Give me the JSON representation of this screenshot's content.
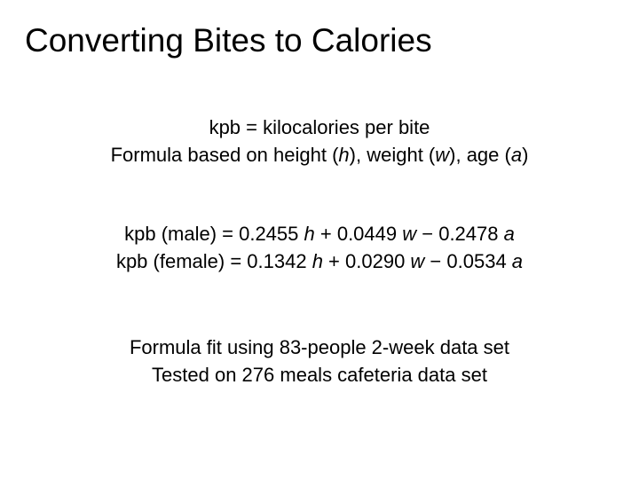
{
  "title": "Converting Bites to Calories",
  "definition": {
    "line1": "kpb = kilocalories per bite",
    "line2": {
      "prefix": "Formula based on height (",
      "h": "h",
      "mid1": "), weight (",
      "w": "w",
      "mid2": "), age (",
      "a": "a",
      "suffix": ")"
    }
  },
  "formulas": {
    "male": {
      "lhs": "kpb (male) = 0.2455 ",
      "h": "h",
      "part2": " + 0.0449 ",
      "w": "w",
      "part3": " − 0.2478 ",
      "a": "a"
    },
    "female": {
      "lhs": "kpb (female) = 0.1342 ",
      "h": "h",
      "part2": " + 0.0290 ",
      "w": "w",
      "part3": " − 0.0534 ",
      "a": "a"
    }
  },
  "notes": {
    "line1": "Formula fit using 83-people 2-week data set",
    "line2": "Tested on 276 meals cafeteria data set"
  }
}
